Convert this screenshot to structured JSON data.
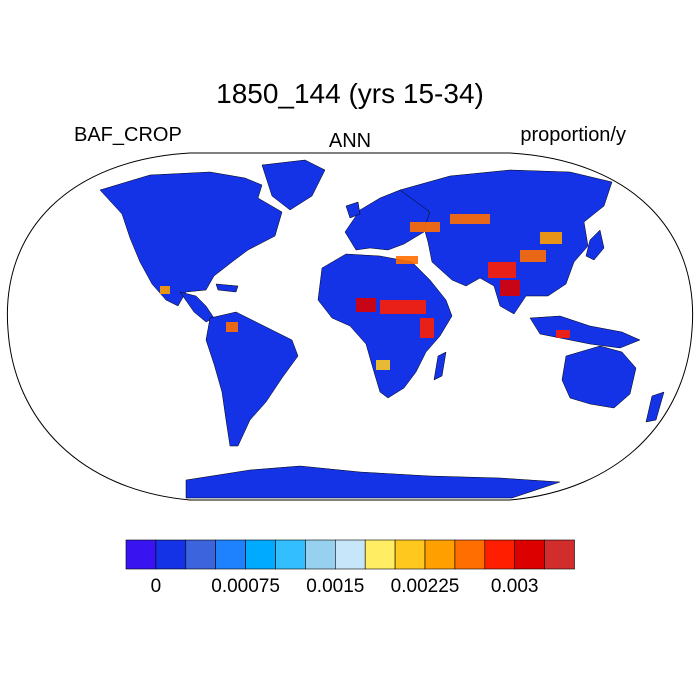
{
  "title": "1850_144 (yrs 15-34)",
  "left_string": "BAF_CROP",
  "center_string": "ANN",
  "right_string": "proportion/y",
  "projection": "Robinson",
  "colors": {
    "ocean": "#ffffff",
    "land_base": "#1432e6",
    "outline": "#000000",
    "palette": [
      "#3a14f0",
      "#1432e6",
      "#3c64dc",
      "#1e82ff",
      "#00aaff",
      "#32beff",
      "#96d2f0",
      "#c8e6fa",
      "#ffee64",
      "#ffc81e",
      "#ffa000",
      "#ff6e00",
      "#ff1e00",
      "#dc0000",
      "#d22d2d"
    ]
  },
  "colorbar": {
    "labels": [
      "0",
      "0.00075",
      "0.0015",
      "0.00225",
      "0.003"
    ]
  }
}
